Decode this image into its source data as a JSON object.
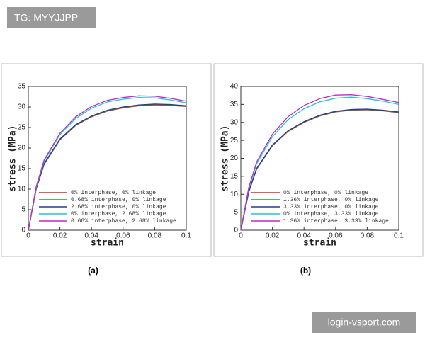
{
  "watermarks": [
    "TG: MYYJJPP",
    "login-vsport.com"
  ],
  "chart_data": [
    {
      "type": "line",
      "caption": "(a)",
      "x_label": "strain",
      "y_label": "stress (MPa)",
      "x": [
        0,
        0.005,
        0.01,
        0.02,
        0.03,
        0.04,
        0.05,
        0.06,
        0.07,
        0.08,
        0.09,
        0.1
      ],
      "xlim": [
        0,
        0.1
      ],
      "xticks": [
        0,
        0.02,
        0.04,
        0.06,
        0.08,
        0.1
      ],
      "ylim": [
        0,
        35
      ],
      "yticks": [
        0,
        5,
        10,
        15,
        20,
        25,
        30,
        35
      ],
      "series": [
        {
          "name": "0% interphase, 0% linkage",
          "color": "#d9262b",
          "values": [
            0,
            10,
            16,
            22,
            25.5,
            27.6,
            29,
            29.8,
            30.3,
            30.5,
            30.4,
            30.1
          ]
        },
        {
          "name": "0.68% interphase, 0% linkage",
          "color": "#1f9a3a",
          "values": [
            0,
            10,
            16.1,
            22.1,
            25.6,
            27.7,
            29.1,
            29.9,
            30.4,
            30.6,
            30.5,
            30.2
          ]
        },
        {
          "name": "2.68% interphase, 0% linkage",
          "color": "#2a3a8c",
          "values": [
            0,
            10.1,
            16.2,
            22.2,
            25.7,
            27.8,
            29.2,
            30,
            30.5,
            30.7,
            30.6,
            30.3
          ]
        },
        {
          "name": "0% interphase, 2.68% linkage",
          "color": "#22c4d8",
          "values": [
            0,
            10.4,
            16.8,
            23.3,
            27.2,
            29.7,
            31.2,
            31.9,
            32.3,
            32.2,
            31.7,
            31
          ]
        },
        {
          "name": "0.68% interphase, 2.68% linkage",
          "color": "#c12ac4",
          "values": [
            0,
            10.6,
            17.1,
            23.6,
            27.6,
            30.1,
            31.6,
            32.3,
            32.7,
            32.6,
            32.1,
            31.4
          ]
        }
      ]
    },
    {
      "type": "line",
      "caption": "(b)",
      "x_label": "strain",
      "y_label": "stress (MPa)",
      "x": [
        0,
        0.005,
        0.01,
        0.02,
        0.03,
        0.04,
        0.05,
        0.06,
        0.07,
        0.08,
        0.09,
        0.1
      ],
      "xlim": [
        0,
        0.1
      ],
      "xticks": [
        0,
        0.02,
        0.04,
        0.06,
        0.08,
        0.1
      ],
      "ylim": [
        0,
        40
      ],
      "yticks": [
        0,
        5,
        10,
        15,
        20,
        25,
        30,
        35,
        40
      ],
      "series": [
        {
          "name": "0% interphase, 0% linkage",
          "color": "#d9262b",
          "values": [
            0,
            10.5,
            17,
            23.5,
            27.5,
            30,
            31.8,
            32.9,
            33.4,
            33.5,
            33.2,
            32.7
          ]
        },
        {
          "name": "1.36% interphase, 0% linkage",
          "color": "#1f9a3a",
          "values": [
            0,
            10.6,
            17.1,
            23.6,
            27.6,
            30.1,
            31.9,
            33,
            33.5,
            33.6,
            33.3,
            32.8
          ]
        },
        {
          "name": "3.33% interphase, 0% linkage",
          "color": "#2a3a8c",
          "values": [
            0,
            10.7,
            17.2,
            23.7,
            27.7,
            30.2,
            32,
            33.1,
            33.6,
            33.7,
            33.4,
            32.9
          ]
        },
        {
          "name": "0% interphase, 3.33% linkage",
          "color": "#22c4d8",
          "values": [
            0,
            11.5,
            18.5,
            26,
            30.8,
            33.8,
            35.7,
            36.7,
            37,
            36.6,
            35.9,
            35
          ]
        },
        {
          "name": "1.36% interphase, 3.33% linkage",
          "color": "#c12ac4",
          "values": [
            0,
            11.8,
            19,
            26.7,
            31.6,
            34.7,
            36.6,
            37.6,
            37.7,
            37.2,
            36.4,
            35.5
          ]
        }
      ]
    }
  ]
}
